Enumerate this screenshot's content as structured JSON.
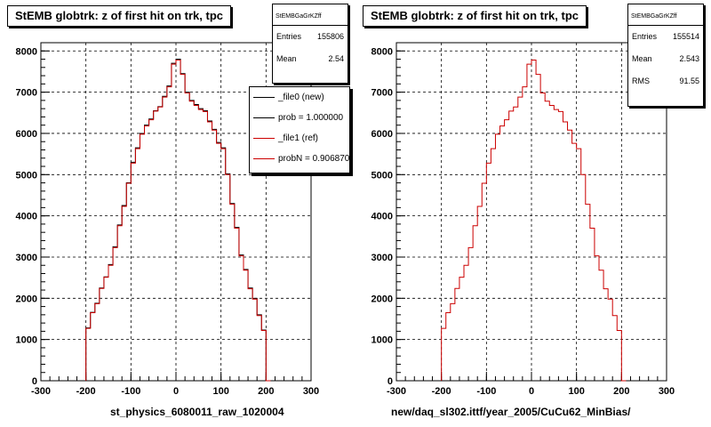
{
  "chart_data": [
    {
      "type": "bar",
      "title": "StEMB globtrk: z of first hit on trk, tpc",
      "xlabel": "st_physics_6080011_raw_1020004",
      "xlim": [
        -300,
        300
      ],
      "ylim": [
        0,
        8200
      ],
      "xticks": [
        "-300",
        "-200",
        "-100",
        "0",
        "100",
        "200",
        "300"
      ],
      "yticks": [
        "0",
        "1000",
        "2000",
        "3000",
        "4000",
        "5000",
        "6000",
        "7000",
        "8000"
      ],
      "grid": true,
      "bin_edges": [
        -200,
        -190,
        -180,
        -170,
        -160,
        -150,
        -140,
        -130,
        -120,
        -110,
        -100,
        -90,
        -80,
        -70,
        -60,
        -50,
        -40,
        -30,
        -20,
        -10,
        0,
        10,
        20,
        30,
        40,
        50,
        60,
        70,
        80,
        90,
        100,
        110,
        120,
        130,
        140,
        150,
        160,
        170,
        180,
        190,
        200,
        210
      ],
      "series": [
        {
          "name": "_file0 (new)",
          "color": "#000000",
          "values": [
            1280,
            1660,
            1880,
            2250,
            2520,
            2820,
            3250,
            3780,
            4250,
            4800,
            5300,
            5650,
            6000,
            6200,
            6350,
            6550,
            6650,
            6900,
            7150,
            7700,
            7800,
            7450,
            7000,
            6800,
            6700,
            6600,
            6550,
            6300,
            6100,
            5780,
            5650,
            5020,
            4300,
            3720,
            3050,
            2700,
            2250,
            2000,
            1600,
            1230,
            0
          ]
        },
        {
          "name": "_file1 (ref)",
          "color": "#cc0000",
          "values": [
            1270,
            1650,
            1870,
            2240,
            2510,
            2800,
            3230,
            3760,
            4230,
            4790,
            5280,
            5630,
            5980,
            6180,
            6330,
            6540,
            6640,
            6880,
            7130,
            7680,
            7780,
            7430,
            6980,
            6780,
            6680,
            6580,
            6530,
            6280,
            6080,
            5760,
            5630,
            5000,
            4280,
            3700,
            3030,
            2680,
            2230,
            1980,
            1580,
            1220,
            0
          ]
        }
      ],
      "legend": {
        "placement": "top-right",
        "entries": [
          "_file0 (new)",
          "prob = 1.000000",
          "_file1 (ref)",
          "probN = 0.906870"
        ]
      },
      "stats": {
        "name": "StEMBGaGrKZff",
        "entries_label": "Entries",
        "entries": "155806",
        "mean_label": "Mean",
        "mean": "2.54"
      }
    },
    {
      "type": "bar",
      "title": "StEMB globtrk: z of first hit on trk, tpc",
      "xlabel": "new/daq_sl302.ittf/year_2005/CuCu62_MinBias/",
      "xlim": [
        -300,
        300
      ],
      "ylim": [
        0,
        8200
      ],
      "xticks": [
        "-300",
        "-200",
        "-100",
        "0",
        "100",
        "200",
        "300"
      ],
      "yticks": [
        "0",
        "1000",
        "2000",
        "3000",
        "4000",
        "5000",
        "6000",
        "7000",
        "8000"
      ],
      "grid": true,
      "bin_edges": [
        -200,
        -190,
        -180,
        -170,
        -160,
        -150,
        -140,
        -130,
        -120,
        -110,
        -100,
        -90,
        -80,
        -70,
        -60,
        -50,
        -40,
        -30,
        -20,
        -10,
        0,
        10,
        20,
        30,
        40,
        50,
        60,
        70,
        80,
        90,
        100,
        110,
        120,
        130,
        140,
        150,
        160,
        170,
        180,
        190,
        200,
        210
      ],
      "series": [
        {
          "color": "#cc0000",
          "values": [
            1270,
            1650,
            1870,
            2240,
            2510,
            2800,
            3230,
            3760,
            4230,
            4790,
            5280,
            5630,
            5980,
            6180,
            6330,
            6540,
            6640,
            6880,
            7130,
            7680,
            7780,
            7430,
            6980,
            6780,
            6680,
            6580,
            6530,
            6280,
            6080,
            5760,
            5630,
            5000,
            4280,
            3700,
            3030,
            2680,
            2230,
            1980,
            1580,
            1220,
            0
          ]
        }
      ],
      "stats": {
        "name": "StEMBGaGrKZff",
        "entries_label": "Entries",
        "entries": "155514",
        "mean_label": "Mean",
        "mean": "2.543",
        "rms_label": "RMS",
        "rms": "91.55"
      }
    }
  ]
}
